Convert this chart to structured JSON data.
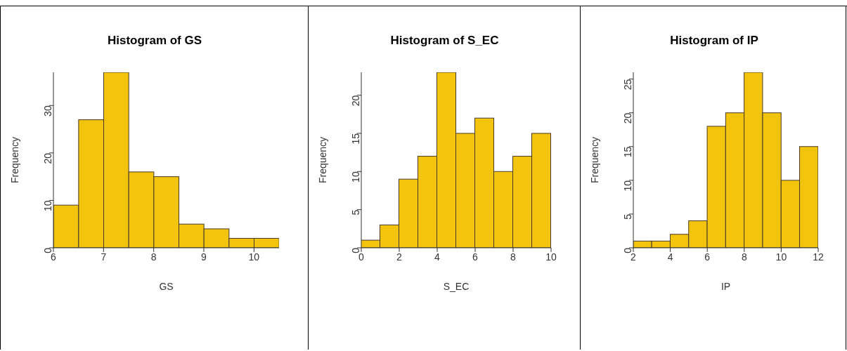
{
  "chart_data": [
    {
      "type": "histogram",
      "title": "Histogram of GS",
      "xlabel": "GS",
      "ylabel": "Frequency",
      "color": "#f2c40e",
      "bins": [
        6,
        6.5,
        7,
        7.5,
        8,
        8.5,
        9,
        9.5,
        10,
        10.5
      ],
      "values": [
        9,
        27,
        37,
        16,
        15,
        5,
        4,
        2,
        2
      ],
      "xlim": [
        6,
        10.5
      ],
      "xticks": [
        6,
        7,
        8,
        9,
        10
      ],
      "ylim": [
        0,
        37
      ],
      "yticks": [
        0,
        10,
        20,
        30
      ]
    },
    {
      "type": "histogram",
      "title": "Histogram of S_EC",
      "xlabel": "S_EC",
      "ylabel": "Frequency",
      "color": "#f2c40e",
      "bins": [
        0,
        1,
        2,
        3,
        4,
        5,
        6,
        7,
        8,
        9,
        10
      ],
      "values": [
        1,
        3,
        9,
        12,
        23,
        15,
        17,
        10,
        12,
        15
      ],
      "xlim": [
        0,
        10
      ],
      "xticks": [
        0,
        2,
        4,
        6,
        8,
        10
      ],
      "ylim": [
        0,
        23
      ],
      "yticks": [
        0,
        5,
        10,
        15,
        20
      ]
    },
    {
      "type": "histogram",
      "title": "Histogram of IP",
      "xlabel": "IP",
      "ylabel": "Frequency",
      "color": "#f2c40e",
      "bins": [
        2,
        3,
        4,
        5,
        6,
        7,
        8,
        9,
        10,
        11,
        12
      ],
      "values": [
        1,
        1,
        2,
        4,
        18,
        20,
        26,
        20,
        10,
        15
      ],
      "xlim": [
        2,
        12
      ],
      "xticks": [
        2,
        4,
        6,
        8,
        10,
        12
      ],
      "ylim": [
        0,
        26
      ],
      "yticks": [
        0,
        5,
        10,
        15,
        20,
        25
      ]
    }
  ]
}
